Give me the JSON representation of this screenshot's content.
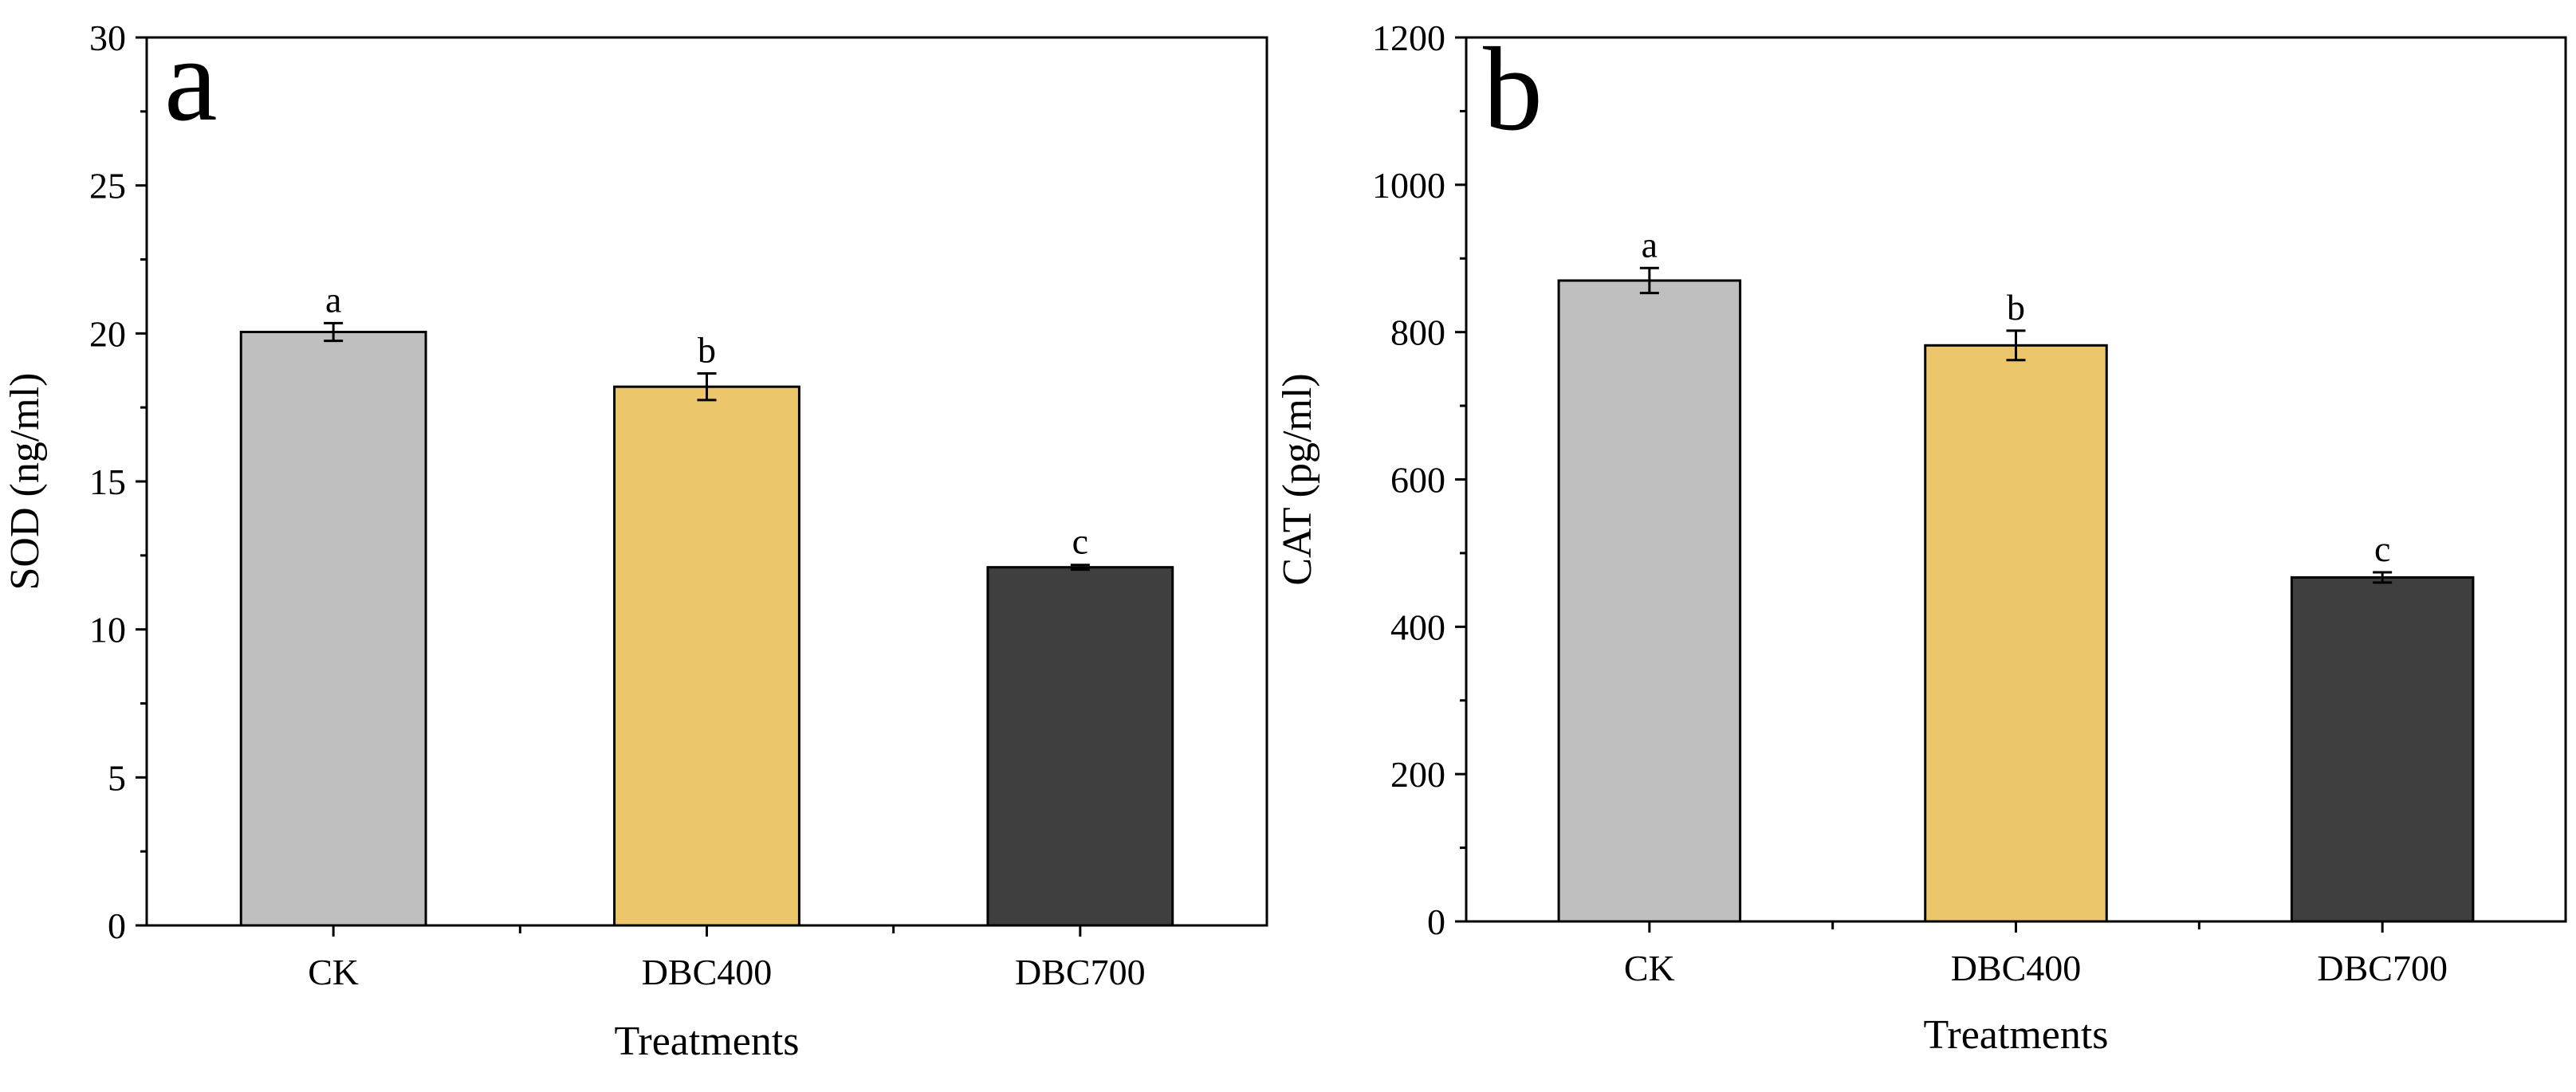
{
  "chart_data": [
    {
      "type": "bar",
      "panel_label": "a",
      "categories": [
        "CK",
        "DBC400",
        "DBC700"
      ],
      "values": [
        20.05,
        18.2,
        12.1
      ],
      "errors": [
        0.3,
        0.45,
        0.08
      ],
      "significance": [
        "a",
        "b",
        "c"
      ],
      "colors": [
        "#bfbfbf",
        "#ecc66a",
        "#3f3f3f"
      ],
      "xlabel": "Treatments",
      "ylabel": "SOD (ng/ml)",
      "ylim": [
        0,
        30
      ],
      "yticks": [
        0,
        5,
        10,
        15,
        20,
        25,
        30
      ],
      "ytick_labels": [
        "0",
        "5",
        "10",
        "15",
        "20",
        "25",
        "30"
      ],
      "grid": false,
      "legend": "none"
    },
    {
      "type": "bar",
      "panel_label": "b",
      "categories": [
        "CK",
        "DBC400",
        "DBC700"
      ],
      "values": [
        870,
        782,
        467
      ],
      "errors": [
        17,
        20,
        7
      ],
      "significance": [
        "a",
        "b",
        "c"
      ],
      "colors": [
        "#bfbfbf",
        "#ecc66a",
        "#3f3f3f"
      ],
      "xlabel": "Treatments",
      "ylabel": "CAT (pg/ml)",
      "ylim": [
        0,
        1200
      ],
      "yticks": [
        0,
        200,
        400,
        600,
        800,
        1000,
        1200
      ],
      "ytick_labels": [
        "0",
        "200",
        "400",
        "600",
        "800",
        "1000",
        "1200"
      ],
      "grid": false,
      "legend": "none"
    }
  ]
}
